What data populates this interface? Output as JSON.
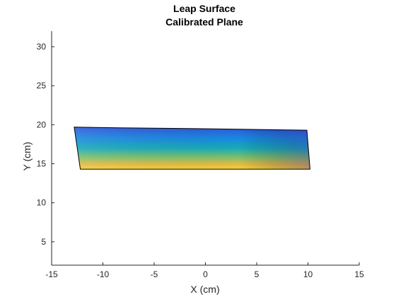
{
  "chart_data": {
    "type": "surface",
    "title": [
      "Leap Surface",
      "Calibrated Plane"
    ],
    "xlabel": "X (cm)",
    "ylabel": "Y (cm)",
    "xlim": [
      -15,
      15
    ],
    "ylim": [
      2,
      32
    ],
    "xticks": [
      -15,
      -10,
      -5,
      0,
      5,
      10,
      15
    ],
    "yticks": [
      5,
      10,
      15,
      20,
      25,
      30
    ],
    "grid": false,
    "colormap": [
      "#3e26a8",
      "#2c69fd",
      "#1aa0de",
      "#13beb8",
      "#5cc863",
      "#c8c129",
      "#fbb437",
      "#f9fb15"
    ],
    "surface_outline": [
      {
        "x": -12.8,
        "y": 19.7
      },
      {
        "x": -8.4,
        "y": 19.6
      },
      {
        "x": -1.0,
        "y": 19.5
      },
      {
        "x": 4.5,
        "y": 19.4
      },
      {
        "x": 9.9,
        "y": 19.3
      },
      {
        "x": 10.2,
        "y": 14.3
      },
      {
        "x": -12.2,
        "y": 14.3
      }
    ],
    "color_gradient_note": "top (high Y) blue-violet to bottom (low Y) yellow"
  }
}
